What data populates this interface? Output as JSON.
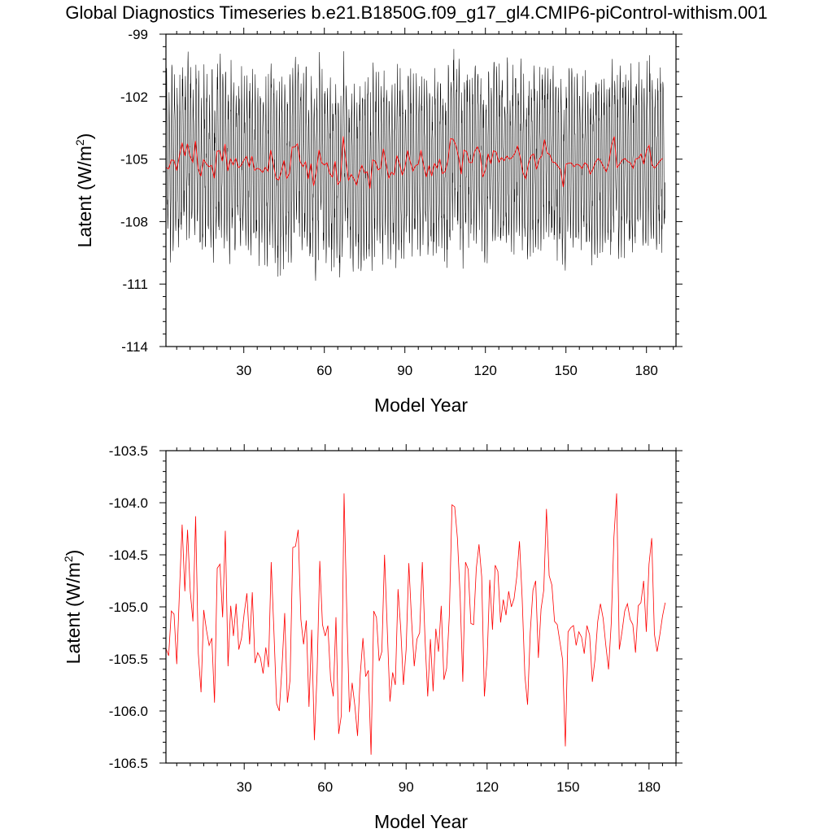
{
  "title": "Global Diagnostics Timeseries b.e21.B1850G.f09_g17_gl4.CMIP6-piControl-withism.001",
  "colors": {
    "monthly": "#000000",
    "annual": "#ff0000",
    "frame": "#000000"
  },
  "chart_data": [
    {
      "type": "line",
      "xlabel": "Model Year",
      "ylabel": "Latent (W/m",
      "ylabel_sup": "2",
      "ylabel_close": ")",
      "xlim": [
        1,
        191
      ],
      "ylim": [
        -114,
        -99
      ],
      "xticks": [
        30,
        60,
        90,
        120,
        150,
        180
      ],
      "xtick_labels": [
        "30",
        "60",
        "90",
        "120",
        "150",
        "180"
      ],
      "yticks": [
        -114,
        -111,
        -108,
        -105,
        -102,
        -99
      ],
      "ytick_labels": [
        "-114",
        "-111",
        "-108",
        "-105",
        "-102",
        "-99"
      ],
      "grid": false,
      "series": [
        {
          "color": "#000000",
          "values_note": "monthly",
          "values": []
        },
        {
          "color": "#ff0000",
          "values": []
        }
      ]
    },
    {
      "type": "line",
      "xlabel": "Model Year",
      "ylabel": "Latent (W/m",
      "ylabel_sup": "2",
      "ylabel_close": ")",
      "xlim": [
        1,
        190
      ],
      "ylim": [
        -106.5,
        -103.5
      ],
      "xticks": [
        30,
        60,
        90,
        120,
        150,
        180
      ],
      "xtick_labels": [
        "30",
        "60",
        "90",
        "120",
        "150",
        "180"
      ],
      "yticks": [
        -106.5,
        -106.0,
        -105.5,
        -105.0,
        -104.5,
        -104.0,
        -103.5
      ],
      "ytick_labels": [
        "-106.5",
        "-106.0",
        "-105.5",
        "-105.0",
        "-104.5",
        "-104.0",
        "-103.5"
      ],
      "grid": false,
      "series": [
        {
          "color": "#ff0000",
          "x_start": 1,
          "values": [
            -105.4,
            -105.47,
            -105.04,
            -105.07,
            -105.55,
            -104.86,
            -104.21,
            -104.85,
            -104.26,
            -104.85,
            -105.14,
            -104.13,
            -105.45,
            -105.82,
            -105.03,
            -105.22,
            -105.37,
            -105.3,
            -105.92,
            -104.63,
            -104.59,
            -105.1,
            -104.27,
            -105.57,
            -104.99,
            -105.28,
            -104.97,
            -105.41,
            -105.3,
            -105.06,
            -104.87,
            -105.36,
            -104.86,
            -105.54,
            -105.44,
            -105.49,
            -105.64,
            -105.39,
            -105.58,
            -104.57,
            -105.23,
            -105.93,
            -106.0,
            -105.58,
            -105.06,
            -105.92,
            -105.7,
            -104.43,
            -104.42,
            -104.26,
            -105.12,
            -105.36,
            -105.13,
            -105.96,
            -105.22,
            -106.28,
            -105.64,
            -104.56,
            -105.17,
            -105.28,
            -105.18,
            -105.69,
            -105.86,
            -105.1,
            -106.22,
            -106.04,
            -103.91,
            -105.04,
            -106.01,
            -105.73,
            -105.95,
            -106.24,
            -105.65,
            -105.3,
            -105.67,
            -105.61,
            -106.42,
            -105.04,
            -105.1,
            -105.52,
            -105.43,
            -104.5,
            -105.21,
            -105.91,
            -105.63,
            -105.75,
            -104.83,
            -105.21,
            -105.75,
            -105.41,
            -104.58,
            -105.12,
            -105.57,
            -105.31,
            -105.25,
            -104.57,
            -105.31,
            -105.86,
            -105.31,
            -105.81,
            -105.21,
            -105.43,
            -104.99,
            -105.7,
            -105.59,
            -105.09,
            -104.02,
            -104.04,
            -104.34,
            -104.89,
            -105.72,
            -104.57,
            -104.64,
            -105.16,
            -105.17,
            -104.63,
            -104.4,
            -104.71,
            -105.86,
            -105.51,
            -104.74,
            -105.22,
            -104.6,
            -104.66,
            -105.15,
            -104.93,
            -105.08,
            -104.85,
            -105.0,
            -104.92,
            -104.71,
            -104.37,
            -104.92,
            -105.66,
            -105.94,
            -105.24,
            -104.84,
            -104.75,
            -105.49,
            -105.02,
            -104.84,
            -104.06,
            -104.7,
            -104.79,
            -105.14,
            -105.17,
            -105.34,
            -105.51,
            -106.34,
            -105.24,
            -105.2,
            -105.18,
            -105.37,
            -105.24,
            -105.29,
            -105.45,
            -105.18,
            -105.27,
            -105.72,
            -105.5,
            -105.14,
            -104.97,
            -105.11,
            -105.37,
            -105.6,
            -105.16,
            -104.33,
            -103.91,
            -105.41,
            -105.24,
            -105.04,
            -104.97,
            -105.12,
            -105.17,
            -105.44,
            -104.99,
            -104.96,
            -104.75,
            -105.24,
            -104.59,
            -104.34,
            -105.26,
            -105.43,
            -105.27,
            -105.09,
            -104.96
          ]
        }
      ]
    }
  ]
}
